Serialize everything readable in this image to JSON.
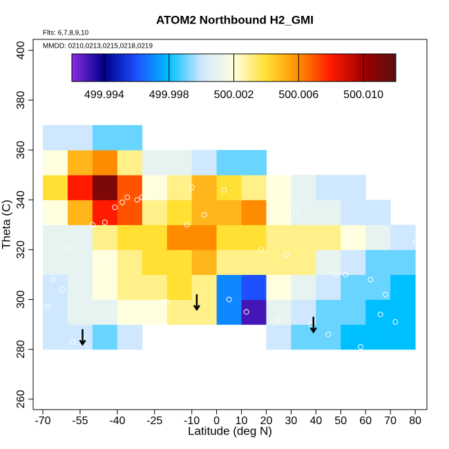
{
  "chart_data": {
    "type": "heatmap",
    "title": "ATOM2 Northbound H2_GMI",
    "annotations": [
      "Flts: 6,7,8,9,10",
      "MMDD: 0210,0213,0215,0218,0219"
    ],
    "x_label": "Latitude (deg N)",
    "y_label": "Theta (C)",
    "xlim": [
      -73.9,
      84.7
    ],
    "ylim": [
      255.8,
      404.4
    ],
    "xticks": [
      -70,
      -55,
      -40,
      -25,
      -10,
      0,
      10,
      20,
      30,
      40,
      50,
      60,
      70,
      80
    ],
    "yticks": [
      260,
      280,
      300,
      320,
      340,
      360,
      380,
      400
    ],
    "x": [
      -70,
      -60,
      -50,
      -40,
      -30,
      -20,
      -10,
      0,
      10,
      20,
      30,
      40,
      50,
      60,
      70,
      80
    ],
    "y": [
      280,
      290,
      300,
      310,
      320,
      330,
      340,
      350,
      360,
      370
    ],
    "values": [
      [
        500.0,
        500.0,
        499.999,
        500.0,
        null,
        null,
        null,
        null,
        null,
        500.0,
        499.999,
        499.999,
        499.998,
        499.998,
        499.998
      ],
      [
        500.0,
        500.001,
        500.001,
        500.002,
        500.002,
        500.003,
        500.003,
        499.997,
        499.993,
        500.001,
        500.0,
        499.999,
        499.999,
        499.998,
        499.998
      ],
      [
        500.0,
        500.001,
        500.002,
        500.003,
        500.003,
        500.004,
        500.003,
        499.997,
        499.996,
        500.002,
        500.001,
        500.0,
        499.999,
        499.999,
        499.998
      ],
      [
        500.001,
        500.001,
        500.002,
        500.003,
        500.004,
        500.004,
        500.005,
        500.003,
        500.003,
        500.003,
        500.003,
        500.001,
        500.0,
        499.999,
        499.999
      ],
      [
        500.001,
        500.001,
        500.003,
        500.004,
        500.004,
        500.006,
        500.006,
        500.004,
        500.004,
        500.003,
        500.003,
        500.003,
        500.002,
        500.001,
        500.0
      ],
      [
        500.002,
        500.005,
        500.008,
        500.007,
        500.003,
        500.004,
        500.005,
        500.005,
        500.006,
        500.002,
        500.001,
        500.001,
        500.0,
        500.0,
        null
      ],
      [
        500.004,
        500.008,
        500.011,
        500.007,
        500.002,
        500.003,
        500.005,
        500.004,
        500.003,
        500.002,
        500.001,
        500.0,
        500.0,
        null,
        null
      ],
      [
        500.002,
        500.005,
        500.006,
        500.003,
        500.001,
        500.001,
        500.0,
        499.999,
        499.999,
        null,
        null,
        null,
        null,
        null,
        null
      ],
      [
        500.0,
        500.0,
        499.999,
        499.999,
        null,
        null,
        null,
        null,
        null,
        null,
        null,
        null,
        null,
        null,
        null
      ]
    ],
    "colorbar": {
      "lim": [
        499.992,
        500.012
      ],
      "ticks": [
        499.994,
        499.998,
        500.002,
        500.006,
        {
          "value": 500.01,
          "label": "500.010"
        }
      ],
      "colors": [
        "#8a2be2",
        "#00008b",
        "#1e50ff",
        "#00bfff",
        "#cfe8ff",
        "#ffffe0",
        "#ffe033",
        "#ff8c00",
        "#ff1a00",
        "#a00000",
        "#5a1010"
      ]
    },
    "points": {
      "x": [
        -68,
        -66,
        -62,
        -58,
        -54,
        -50,
        -45,
        -41,
        -38,
        -36,
        -32,
        -30,
        -20,
        -12,
        -5,
        5,
        12,
        18,
        25,
        32,
        38,
        45,
        52,
        58,
        62,
        66,
        72,
        80,
        -60,
        -48,
        -10,
        3,
        28,
        48,
        68
      ],
      "y": [
        297,
        308,
        304,
        283,
        284,
        330,
        331,
        337,
        339,
        341,
        340,
        341,
        299,
        330,
        334,
        300,
        295,
        320,
        292,
        336,
        290,
        286,
        310,
        281,
        308,
        294,
        291,
        323,
        320,
        318,
        345,
        344,
        318,
        310,
        302
      ]
    },
    "arrows": {
      "x": [
        -54,
        -8,
        39
      ],
      "y": [
        282,
        296,
        287
      ]
    }
  }
}
